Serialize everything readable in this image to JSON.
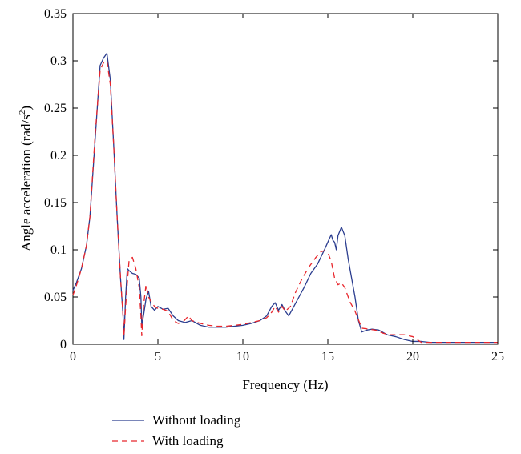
{
  "chart_data": {
    "type": "line",
    "title": "",
    "xlabel": "Frequency (Hz)",
    "ylabel_main": "Angle acceleration (rad/s",
    "ylabel_sup": "2",
    "ylabel_close": ")",
    "xlim": [
      0,
      25
    ],
    "ylim": [
      0,
      0.35
    ],
    "x_ticks": [
      0,
      5,
      10,
      15,
      20,
      25
    ],
    "x_tick_labels": [
      "0",
      "5",
      "10",
      "15",
      "20",
      "25"
    ],
    "y_ticks": [
      0,
      0.05,
      0.1,
      0.15,
      0.2,
      0.25,
      0.3,
      0.35
    ],
    "y_tick_labels": [
      "0",
      "0.05",
      "0.1",
      "0.15",
      "0.2",
      "0.25",
      "0.3",
      "0.35"
    ],
    "grid": false,
    "legend_position": "bottom-left, below plot",
    "series": [
      {
        "name": "Without loading",
        "color": "#2b3d8f",
        "dash": "solid",
        "x": [
          0,
          0.2,
          0.5,
          0.8,
          1.0,
          1.3,
          1.6,
          1.8,
          2.0,
          2.2,
          2.4,
          2.6,
          2.8,
          2.95,
          3.0,
          3.1,
          3.2,
          3.3,
          3.5,
          3.7,
          3.9,
          4.0,
          4.05,
          4.15,
          4.3,
          4.45,
          4.6,
          4.8,
          5.0,
          5.3,
          5.6,
          5.9,
          6.2,
          6.6,
          7.0,
          7.5,
          8.0,
          8.5,
          9.0,
          9.5,
          10.0,
          10.5,
          11.0,
          11.4,
          11.7,
          11.9,
          12.1,
          12.3,
          12.5,
          12.7,
          13.0,
          13.3,
          13.6,
          14.0,
          14.4,
          14.8,
          15.0,
          15.2,
          15.3,
          15.4,
          15.5,
          15.6,
          15.8,
          16.0,
          16.2,
          16.4,
          16.6,
          16.8,
          17.0,
          17.3,
          17.6,
          18.0,
          18.5,
          19.0,
          19.5,
          20.0,
          20.5,
          21.0,
          22.0,
          23.0,
          24.0,
          25.0
        ],
        "y": [
          0.057,
          0.065,
          0.08,
          0.105,
          0.135,
          0.215,
          0.295,
          0.303,
          0.308,
          0.28,
          0.21,
          0.135,
          0.07,
          0.03,
          0.005,
          0.05,
          0.08,
          0.078,
          0.075,
          0.074,
          0.07,
          0.05,
          0.02,
          0.03,
          0.048,
          0.056,
          0.04,
          0.036,
          0.04,
          0.037,
          0.038,
          0.03,
          0.025,
          0.023,
          0.025,
          0.02,
          0.018,
          0.018,
          0.018,
          0.019,
          0.02,
          0.022,
          0.025,
          0.03,
          0.04,
          0.044,
          0.036,
          0.042,
          0.035,
          0.03,
          0.04,
          0.05,
          0.06,
          0.075,
          0.085,
          0.1,
          0.108,
          0.116,
          0.11,
          0.108,
          0.1,
          0.115,
          0.124,
          0.115,
          0.09,
          0.07,
          0.05,
          0.025,
          0.013,
          0.015,
          0.016,
          0.015,
          0.01,
          0.008,
          0.005,
          0.003,
          0.003,
          0.002,
          0.002,
          0.002,
          0.002,
          0.002
        ]
      },
      {
        "name": "With loading",
        "color": "#e8262c",
        "dash": "dashed",
        "x": [
          0,
          0.2,
          0.5,
          0.8,
          1.0,
          1.3,
          1.6,
          1.8,
          2.0,
          2.2,
          2.4,
          2.6,
          2.8,
          2.95,
          3.0,
          3.1,
          3.2,
          3.3,
          3.5,
          3.7,
          3.9,
          4.0,
          4.05,
          4.15,
          4.3,
          4.45,
          4.6,
          4.8,
          5.0,
          5.3,
          5.6,
          5.9,
          6.2,
          6.5,
          6.8,
          7.0,
          7.5,
          8.0,
          8.5,
          9.0,
          9.5,
          10.0,
          10.5,
          11.0,
          11.4,
          11.7,
          11.9,
          12.1,
          12.3,
          12.5,
          12.8,
          13.1,
          13.5,
          13.9,
          14.3,
          14.6,
          14.8,
          15.0,
          15.2,
          15.4,
          15.6,
          15.8,
          16.0,
          16.3,
          16.6,
          17.0,
          17.4,
          17.8,
          18.2,
          18.6,
          19.0,
          19.5,
          20.0,
          20.5,
          21.0,
          22.0,
          23.0,
          24.0,
          25.0
        ],
        "y": [
          0.052,
          0.062,
          0.08,
          0.105,
          0.135,
          0.22,
          0.29,
          0.298,
          0.3,
          0.275,
          0.21,
          0.135,
          0.07,
          0.03,
          0.008,
          0.04,
          0.065,
          0.088,
          0.092,
          0.08,
          0.06,
          0.03,
          0.009,
          0.04,
          0.063,
          0.05,
          0.045,
          0.04,
          0.038,
          0.037,
          0.035,
          0.025,
          0.022,
          0.024,
          0.03,
          0.025,
          0.022,
          0.02,
          0.019,
          0.019,
          0.02,
          0.021,
          0.023,
          0.025,
          0.028,
          0.034,
          0.04,
          0.034,
          0.04,
          0.035,
          0.04,
          0.055,
          0.07,
          0.082,
          0.092,
          0.098,
          0.099,
          0.097,
          0.088,
          0.07,
          0.063,
          0.065,
          0.06,
          0.045,
          0.035,
          0.017,
          0.016,
          0.015,
          0.012,
          0.01,
          0.01,
          0.01,
          0.008,
          0.002,
          0.002,
          0.002,
          0.002,
          0.002,
          0.002
        ]
      }
    ]
  }
}
